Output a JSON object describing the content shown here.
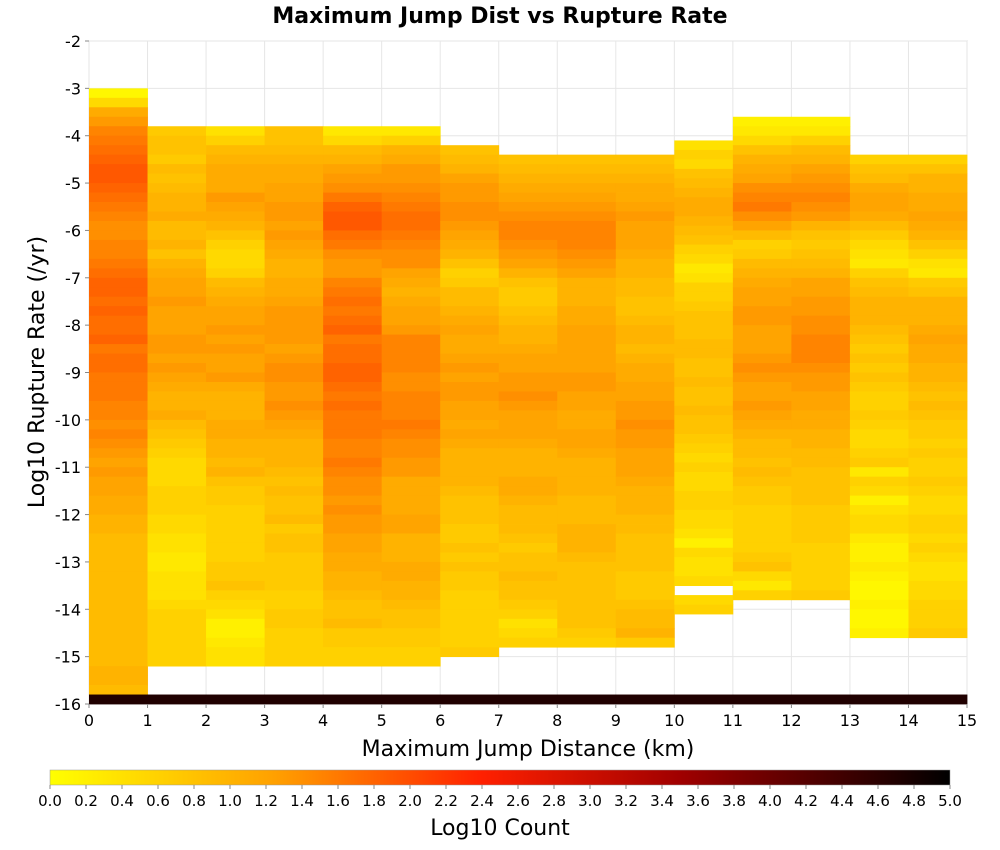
{
  "chart_data": {
    "type": "heatmap",
    "title": "Maximum Jump Dist vs Rupture Rate",
    "xlabel": "Maximum Jump Distance (km)",
    "ylabel": "Log10 Rupture Rate (/yr)",
    "colorbar_label": "Log10 Count",
    "xlim": [
      0,
      15
    ],
    "ylim": [
      -16,
      -2
    ],
    "x_ticks": [
      "0",
      "1",
      "2",
      "3",
      "4",
      "5",
      "6",
      "7",
      "8",
      "9",
      "10",
      "11",
      "12",
      "13",
      "14",
      "15"
    ],
    "y_ticks": [
      "-2",
      "-3",
      "-4",
      "-5",
      "-6",
      "-7",
      "-8",
      "-9",
      "-10",
      "-11",
      "-12",
      "-13",
      "-14",
      "-15",
      "-16"
    ],
    "colorbar_ticks": [
      "0.0",
      "0.2",
      "0.4",
      "0.6",
      "0.8",
      "1.0",
      "1.2",
      "1.4",
      "1.6",
      "1.8",
      "2.0",
      "2.2",
      "2.4",
      "2.6",
      "2.8",
      "3.0",
      "3.2",
      "3.4",
      "3.6",
      "3.8",
      "4.0",
      "4.2",
      "4.4",
      "4.6",
      "4.8",
      "5.0"
    ],
    "colorbar_range": [
      0,
      5
    ],
    "colormap": [
      "#ffff00",
      "#ffa500",
      "#ff2000",
      "#a00000",
      "#000000"
    ],
    "x_bins": [
      "0-1",
      "1-2",
      "2-3",
      "3-4",
      "4-5",
      "5-6",
      "6-7",
      "7-8",
      "8-9",
      "9-10",
      "10-11",
      "11-12",
      "12-13",
      "13-14",
      "14-15"
    ],
    "y_bin_width": 0.2,
    "y_bins_top": -3.0,
    "y_bins_bottom": -16.0,
    "bottom_row_note": "values from -16.0 to -15.8 are the top of each column's cumulative floor row",
    "columns": [
      {
        "x_bin": "0-1",
        "ymax": -3.0,
        "values": [
          0.1,
          0.5,
          1.1,
          1.3,
          1.5,
          1.6,
          1.7,
          1.8,
          1.9,
          1.9,
          1.8,
          1.7,
          1.6,
          1.5,
          1.4,
          1.4,
          1.5,
          1.5,
          1.6,
          1.7,
          1.8,
          1.8,
          1.7,
          1.8,
          1.7,
          1.7,
          1.8,
          1.6,
          1.7,
          1.7,
          1.6,
          1.6,
          1.6,
          1.5,
          1.5,
          1.4,
          1.5,
          1.4,
          1.3,
          1.2,
          1.3,
          1.2,
          1.2,
          1.1,
          1.1,
          1.0,
          1.0,
          0.9,
          0.9,
          0.9,
          0.9,
          0.9,
          0.9,
          0.9,
          0.9,
          0.9,
          0.9,
          0.9,
          0.9,
          0.9,
          0.9,
          1.0,
          1.0,
          0.9,
          4.7
        ]
      },
      {
        "x_bin": "1-2",
        "ymax": -3.8,
        "values": [
          0.7,
          0.8,
          0.8,
          0.7,
          0.9,
          0.8,
          0.9,
          1.0,
          1.0,
          1.1,
          0.9,
          0.9,
          1.0,
          0.8,
          1.0,
          1.1,
          1.2,
          1.2,
          1.3,
          1.2,
          1.2,
          1.2,
          1.3,
          1.3,
          1.2,
          1.3,
          1.2,
          1.1,
          1.0,
          1.0,
          1.1,
          0.9,
          0.8,
          0.7,
          0.6,
          0.5,
          0.5,
          0.5,
          0.6,
          0.6,
          0.6,
          0.5,
          0.5,
          0.4,
          0.4,
          0.3,
          0.3,
          0.4,
          0.4,
          0.4,
          0.5,
          0.6,
          0.6,
          0.6,
          0.6,
          0.6,
          0.6,
          4.7
        ]
      },
      {
        "x_bin": "2-3",
        "ymax": -3.8,
        "values": [
          0.4,
          0.6,
          0.9,
          1.0,
          1.1,
          1.1,
          1.1,
          1.3,
          1.2,
          1.1,
          1.0,
          0.8,
          0.6,
          0.5,
          0.5,
          0.6,
          0.9,
          1.0,
          1.1,
          1.2,
          1.2,
          1.3,
          1.2,
          1.3,
          1.2,
          1.2,
          1.3,
          1.1,
          1.0,
          1.0,
          1.0,
          1.1,
          1.1,
          1.0,
          1.0,
          0.9,
          1.0,
          0.8,
          0.7,
          0.7,
          0.6,
          0.6,
          0.6,
          0.6,
          0.6,
          0.6,
          0.7,
          0.7,
          0.8,
          0.6,
          0.5,
          0.4,
          0.2,
          0.2,
          0.3,
          0.4,
          0.4,
          4.7
        ]
      },
      {
        "x_bin": "3-4",
        "ymax": -3.8,
        "values": [
          0.8,
          0.8,
          0.9,
          1.0,
          1.1,
          1.1,
          1.2,
          1.2,
          1.3,
          1.3,
          1.2,
          1.3,
          1.2,
          1.1,
          1.0,
          1.0,
          1.1,
          1.1,
          1.2,
          1.3,
          1.3,
          1.3,
          1.3,
          1.2,
          1.3,
          1.4,
          1.4,
          1.3,
          1.3,
          1.4,
          1.3,
          1.2,
          1.1,
          1.0,
          1.0,
          1.0,
          0.9,
          0.8,
          0.9,
          0.8,
          0.8,
          0.9,
          0.7,
          0.8,
          0.8,
          0.7,
          0.7,
          0.7,
          0.7,
          0.6,
          0.6,
          0.7,
          0.7,
          0.6,
          0.6,
          0.6,
          0.6,
          4.7
        ]
      },
      {
        "x_bin": "4-5",
        "ymax": -3.8,
        "values": [
          0.3,
          0.5,
          0.9,
          1.0,
          1.2,
          1.3,
          1.4,
          1.6,
          1.8,
          1.9,
          1.9,
          1.7,
          1.6,
          1.4,
          1.3,
          1.3,
          1.5,
          1.6,
          1.7,
          1.6,
          1.7,
          1.8,
          1.6,
          1.7,
          1.7,
          1.8,
          1.8,
          1.7,
          1.6,
          1.7,
          1.6,
          1.6,
          1.6,
          1.5,
          1.5,
          1.6,
          1.5,
          1.4,
          1.4,
          1.3,
          1.4,
          1.3,
          1.3,
          1.2,
          1.2,
          1.1,
          1.1,
          1.0,
          1.0,
          0.9,
          0.8,
          0.8,
          0.9,
          0.7,
          0.7,
          0.6,
          0.6,
          4.7
        ]
      },
      {
        "x_bin": "5-6",
        "ymax": -3.8,
        "values": [
          0.3,
          0.6,
          1.0,
          1.1,
          1.3,
          1.3,
          1.4,
          1.5,
          1.6,
          1.7,
          1.7,
          1.6,
          1.5,
          1.4,
          1.4,
          1.2,
          1.1,
          1.0,
          1.1,
          1.2,
          1.2,
          1.3,
          1.5,
          1.5,
          1.5,
          1.5,
          1.4,
          1.4,
          1.5,
          1.5,
          1.5,
          1.6,
          1.5,
          1.4,
          1.4,
          1.3,
          1.3,
          1.1,
          1.1,
          1.1,
          1.1,
          1.2,
          1.2,
          1.0,
          1.0,
          1.0,
          1.1,
          1.1,
          1.0,
          1.0,
          0.9,
          0.8,
          0.8,
          0.7,
          0.7,
          0.6,
          0.6,
          4.7
        ]
      },
      {
        "x_bin": "6-7",
        "ymax": -4.2,
        "values": [
          0.8,
          0.9,
          1.0,
          1.2,
          1.3,
          1.3,
          1.4,
          1.4,
          1.3,
          1.2,
          1.1,
          1.0,
          0.8,
          0.6,
          0.7,
          0.9,
          0.9,
          1.0,
          1.1,
          1.2,
          1.1,
          1.1,
          1.2,
          1.3,
          1.2,
          1.3,
          1.3,
          1.2,
          1.2,
          1.1,
          1.2,
          1.1,
          1.0,
          1.0,
          1.0,
          1.0,
          0.9,
          0.8,
          0.8,
          0.8,
          0.7,
          0.7,
          0.8,
          0.7,
          0.8,
          0.7,
          0.7,
          0.6,
          0.6,
          0.6,
          0.6,
          0.6,
          0.6,
          0.7,
          4.7
        ]
      },
      {
        "x_bin": "7-8",
        "ymax": -4.4,
        "values": [
          0.8,
          0.9,
          1.0,
          1.1,
          1.2,
          1.3,
          1.4,
          1.5,
          1.5,
          1.4,
          1.3,
          1.2,
          1.0,
          0.8,
          0.7,
          0.7,
          0.8,
          0.9,
          1.0,
          1.0,
          1.1,
          1.2,
          1.2,
          1.3,
          1.3,
          1.4,
          1.3,
          1.2,
          1.2,
          1.2,
          1.1,
          1.0,
          1.0,
          1.0,
          1.1,
          1.1,
          1.0,
          0.9,
          0.9,
          0.9,
          0.8,
          0.7,
          0.8,
          0.8,
          0.9,
          0.8,
          0.8,
          0.7,
          0.6,
          0.4,
          0.5,
          0.6,
          4.7
        ]
      },
      {
        "x_bin": "8-9",
        "ymax": -4.4,
        "values": [
          0.8,
          0.9,
          1.0,
          1.1,
          1.2,
          1.3,
          1.4,
          1.5,
          1.5,
          1.5,
          1.4,
          1.3,
          1.2,
          1.0,
          1.0,
          1.0,
          1.1,
          1.1,
          1.2,
          1.2,
          1.2,
          1.2,
          1.2,
          1.3,
          1.3,
          1.2,
          1.2,
          1.1,
          1.1,
          1.2,
          1.2,
          1.1,
          1.0,
          1.0,
          1.0,
          1.0,
          0.9,
          0.9,
          0.9,
          1.0,
          1.0,
          1.0,
          0.9,
          0.8,
          0.8,
          0.8,
          0.8,
          0.8,
          0.8,
          0.8,
          0.7,
          0.6,
          4.7
        ]
      },
      {
        "x_bin": "9-10",
        "ymax": -4.4,
        "values": [
          0.8,
          0.9,
          1.0,
          1.1,
          1.1,
          1.2,
          1.3,
          1.2,
          1.2,
          1.2,
          1.1,
          1.0,
          1.0,
          0.9,
          0.9,
          0.8,
          0.8,
          0.9,
          1.0,
          1.0,
          0.9,
          1.0,
          1.1,
          1.1,
          1.2,
          1.2,
          1.3,
          1.3,
          1.4,
          1.3,
          1.3,
          1.2,
          1.2,
          1.2,
          1.1,
          1.0,
          1.0,
          1.0,
          0.9,
          0.9,
          0.8,
          0.8,
          0.8,
          0.8,
          0.7,
          0.7,
          0.7,
          0.8,
          0.9,
          0.9,
          1.0,
          0.7,
          4.7
        ]
      },
      {
        "x_bin": "10-11",
        "ymax": -4.1,
        "values": [
          0.4,
          0.6,
          0.5,
          0.8,
          0.9,
          1.0,
          1.1,
          1.1,
          1.0,
          0.9,
          0.8,
          0.6,
          0.5,
          0.3,
          0.4,
          0.6,
          0.6,
          0.7,
          0.8,
          0.8,
          0.8,
          0.9,
          0.9,
          0.8,
          0.8,
          0.9,
          0.8,
          0.8,
          0.9,
          0.8,
          0.8,
          0.7,
          0.6,
          0.5,
          0.6,
          0.5,
          0.5,
          0.6,
          0.6,
          0.5,
          0.5,
          0.4,
          0.2,
          0.5,
          0.4,
          0.4,
          0.5,
          null,
          0.5,
          0.6,
          4.7
        ]
      },
      {
        "x_bin": "11-12",
        "ymax": -3.6,
        "values": [
          0.2,
          0.3,
          0.5,
          0.8,
          1.0,
          1.1,
          1.2,
          1.4,
          1.5,
          1.6,
          1.4,
          1.2,
          0.9,
          0.6,
          0.7,
          0.9,
          1.0,
          1.1,
          1.2,
          1.2,
          1.3,
          1.3,
          1.2,
          1.2,
          1.2,
          1.3,
          1.4,
          1.3,
          1.2,
          1.2,
          1.3,
          1.2,
          1.1,
          1.0,
          0.9,
          0.9,
          0.8,
          0.9,
          0.8,
          0.7,
          0.7,
          0.6,
          0.6,
          0.6,
          0.6,
          0.6,
          0.7,
          0.8,
          0.5,
          0.3,
          0.6,
          4.7
        ]
      },
      {
        "x_bin": "12-13",
        "ymax": -3.6,
        "values": [
          0.2,
          0.3,
          0.6,
          0.9,
          1.0,
          1.2,
          1.3,
          1.4,
          1.5,
          1.4,
          1.3,
          1.0,
          0.8,
          0.7,
          0.8,
          0.9,
          1.0,
          1.2,
          1.2,
          1.3,
          1.3,
          1.4,
          1.4,
          1.5,
          1.5,
          1.5,
          1.4,
          1.3,
          1.3,
          1.2,
          1.2,
          1.1,
          1.1,
          1.0,
          1.0,
          0.9,
          0.9,
          0.8,
          0.8,
          0.8,
          0.8,
          0.7,
          0.7,
          0.7,
          0.7,
          0.6,
          0.6,
          0.6,
          0.6,
          0.6,
          0.7,
          4.7
        ]
      },
      {
        "x_bin": "13-14",
        "ymax": -4.4,
        "values": [
          0.6,
          0.8,
          0.9,
          1.1,
          1.2,
          1.2,
          1.1,
          0.9,
          0.7,
          0.5,
          0.4,
          0.3,
          0.6,
          0.8,
          0.9,
          1.0,
          1.0,
          1.0,
          0.9,
          0.8,
          0.7,
          0.8,
          0.7,
          0.8,
          0.7,
          0.6,
          0.6,
          0.7,
          0.6,
          0.5,
          0.5,
          0.6,
          0.7,
          0.3,
          0.6,
          0.5,
          0.2,
          0.4,
          0.5,
          0.5,
          0.3,
          0.2,
          0.2,
          0.3,
          0.2,
          0.1,
          0.1,
          0.2,
          0.1,
          0.1,
          0.2,
          4.7
        ]
      },
      {
        "x_bin": "14-15",
        "ymax": -4.4,
        "values": [
          0.6,
          0.8,
          1.0,
          1.0,
          1.1,
          1.1,
          1.2,
          1.1,
          1.0,
          0.8,
          0.6,
          0.4,
          0.3,
          0.7,
          0.8,
          1.0,
          1.0,
          1.0,
          1.1,
          1.2,
          1.1,
          1.1,
          1.0,
          1.0,
          0.9,
          0.8,
          0.9,
          0.8,
          0.7,
          0.7,
          0.6,
          0.7,
          0.6,
          0.6,
          0.7,
          0.6,
          0.5,
          0.5,
          0.6,
          0.6,
          0.5,
          0.6,
          0.5,
          0.4,
          0.4,
          0.5,
          0.5,
          0.6,
          0.6,
          0.6,
          0.7,
          4.7
        ]
      }
    ]
  }
}
